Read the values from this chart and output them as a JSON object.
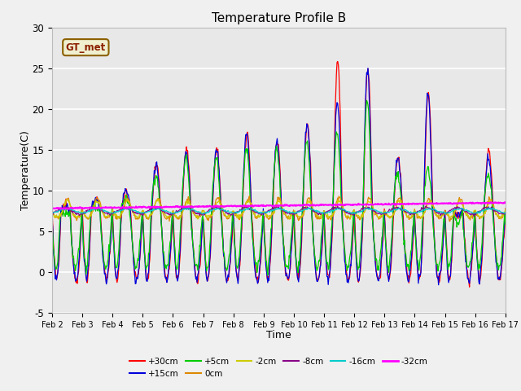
{
  "title": "Temperature Profile B",
  "xlabel": "Time",
  "ylabel": "Temperature(C)",
  "xlim": [
    0,
    15
  ],
  "ylim": [
    -5,
    30
  ],
  "yticks": [
    -5,
    0,
    5,
    10,
    15,
    20,
    25,
    30
  ],
  "xtick_labels": [
    "Feb 2",
    "Feb 3",
    "Feb 4",
    "Feb 5",
    "Feb 6",
    "Feb 7",
    "Feb 8",
    "Feb 9",
    "Feb 10",
    "Feb 11",
    "Feb 12",
    "Feb 13",
    "Feb 14",
    "Feb 15",
    "Feb 16",
    "Feb 17"
  ],
  "fig_bg": "#f0f0f0",
  "plot_bg": "#e8e8e8",
  "series_colors": {
    "+30cm": "#ff0000",
    "+15cm": "#0000dd",
    "+5cm": "#00cc00",
    "0cm": "#dd8800",
    "-2cm": "#cccc00",
    "-8cm": "#880088",
    "-16cm": "#00cccc",
    "-32cm": "#ff00ff"
  },
  "annotation_text": "GT_met",
  "peak_amps_air": [
    8,
    9,
    10,
    13,
    15,
    15,
    17,
    16,
    18,
    26,
    25,
    14,
    22,
    7,
    15
  ],
  "peak_amps_s15": [
    8,
    9,
    10,
    13,
    15,
    15,
    17,
    16,
    18,
    21,
    25,
    14,
    22,
    7,
    14
  ],
  "peak_amps_s5": [
    7,
    8,
    9,
    12,
    14,
    14,
    15,
    15,
    16,
    17,
    21,
    12,
    13,
    6,
    12
  ],
  "base_temp": 7.5,
  "min_temp_air": -1.0,
  "min_temp_s15": -1.0,
  "min_temp_s5": 0.5
}
